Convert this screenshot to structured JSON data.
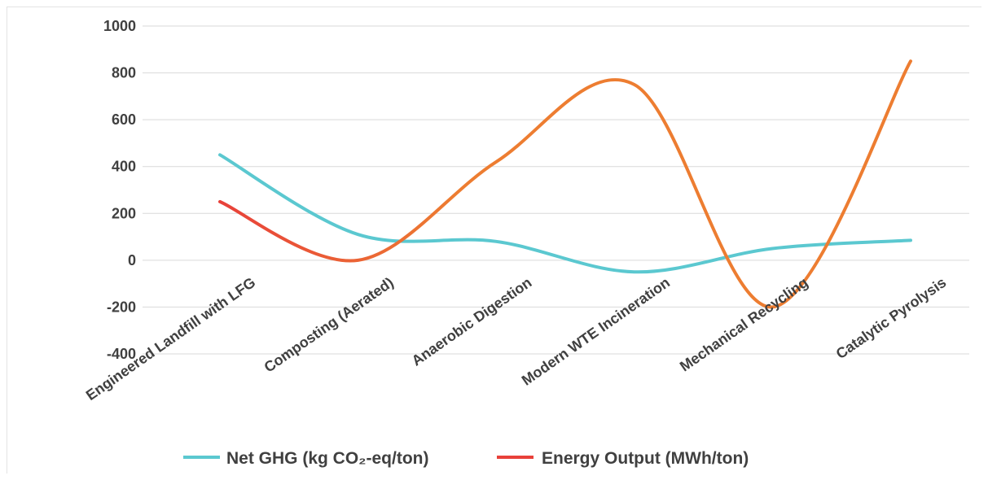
{
  "chart_data": {
    "type": "line",
    "smooth": true,
    "categories": [
      "Engineered Landfill with LFG",
      "Composting (Aerated)",
      "Anaerobic Digestion",
      "Modern WTE Incineration",
      "Mechanical Recycling",
      "Catalytic Pyrolysis"
    ],
    "series": [
      {
        "name": "Net GHG (kg CO₂-eq/ton)",
        "values": [
          450,
          110,
          80,
          -50,
          50,
          85
        ],
        "color": "#5bc8d0"
      },
      {
        "name": "Energy Output (MWh/ton)",
        "values": [
          250,
          0,
          420,
          750,
          -200,
          850
        ],
        "color": "#ed7d31",
        "start_color": "#e8413a"
      }
    ],
    "ylim": [
      -400,
      1000
    ],
    "yticks": [
      "1000",
      "800",
      "600",
      "400",
      "200",
      "0",
      "-200",
      "-400"
    ],
    "grid": true,
    "legend": "bottom"
  }
}
